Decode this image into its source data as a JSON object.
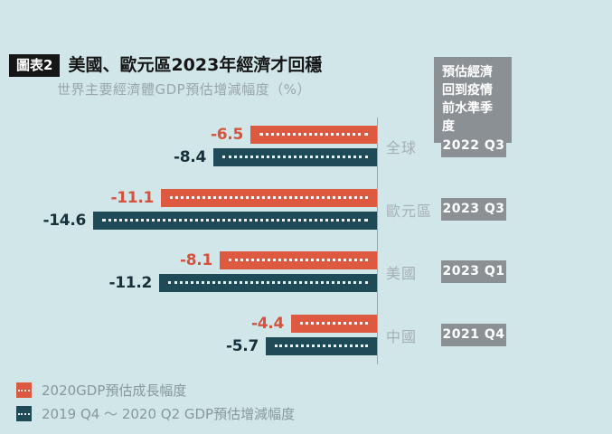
{
  "header": {
    "badge": "圖表2",
    "title": "美國、歐元區2023年經濟才回穩",
    "subtitle": "世界主要經濟體GDP預估增減幅度（%）"
  },
  "callout": {
    "text": "預估經濟回到疫情前水準季度"
  },
  "legend": [
    {
      "label": "2020GDP預估成長幅度",
      "color": "#dd5a41"
    },
    {
      "label": "2019 Q4 ～ 2020 Q2 GDP預估增減幅度",
      "color": "#1e4b57"
    }
  ],
  "colors": {
    "background": "#d0e6e8",
    "orange_bar": "#dd5a41",
    "teal_bar": "#1e4b57",
    "gray_badge": "#8a9094",
    "category_label": "#a5b0b5",
    "axis_line": "#93a9b0",
    "title_black": "#161616",
    "subtitle_gray": "#9aa6a9"
  },
  "chart_data": {
    "type": "bar",
    "orientation": "horizontal",
    "title": "美國、歐元區2023年經濟才回穩",
    "subtitle": "世界主要經濟體GDP預估增減幅度（%）",
    "unit": "%",
    "xlim": [
      -15,
      0
    ],
    "grid": false,
    "legend_position": "bottom-left",
    "categories": [
      "全球",
      "歐元區",
      "美國",
      "中國"
    ],
    "series": [
      {
        "name": "2020GDP預估成長幅度",
        "color": "#dd5a41",
        "values": [
          -6.5,
          -11.1,
          -8.1,
          -4.4
        ]
      },
      {
        "name": "2019 Q4 ～ 2020 Q2 GDP預估增減幅度",
        "color": "#1e4b57",
        "values": [
          -8.4,
          -14.6,
          -11.2,
          -5.7
        ]
      }
    ],
    "recovery_quarters": [
      "2022 Q3",
      "2023 Q3",
      "2023 Q1",
      "2021 Q4"
    ],
    "recovery_quarters_note": "預估經濟回到疫情前水準季度"
  }
}
